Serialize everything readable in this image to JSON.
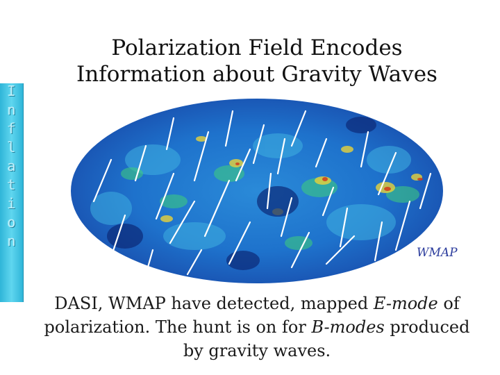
{
  "slide": {
    "title_line1": "Polarization Field Encodes",
    "title_line2": "Information about Gravity Waves",
    "side_word_letters": [
      "I",
      "n",
      "f",
      "l",
      "a",
      "t",
      "i",
      "o",
      "n"
    ],
    "map_label": "WMAP",
    "caption": {
      "part1": "DASI, WMAP have detected, mapped ",
      "em1": "E-mode",
      "part2": " of polarization. The hunt is on for ",
      "em2": "B-modes",
      "part3": " produced by gravity waves."
    }
  },
  "colors": {
    "sidebar": "#2fb5d8",
    "map_base": "#1f6fd0",
    "map_warm": "#e8d23a",
    "map_hot": "#d03a1a",
    "polarization_lines": "#ffffff",
    "label": "#2a3b9c"
  }
}
